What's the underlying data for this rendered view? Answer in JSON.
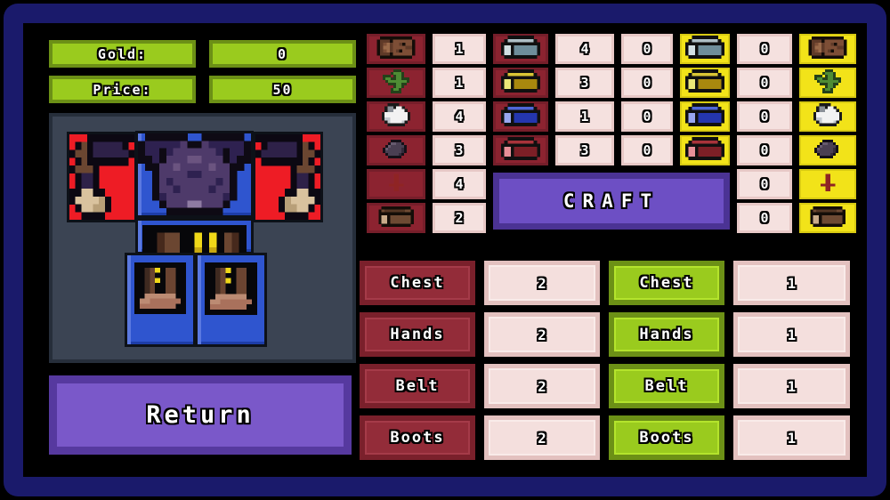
{
  "colors": {
    "frame_navy": "#1a1a6b",
    "accent_green": "#9acb1e",
    "accent_maroon": "#8c2330",
    "accent_pink": "#f5e1df",
    "accent_yellow": "#f2e319",
    "accent_purple": "#7a58c9",
    "slot_red": "#ee1c25",
    "slot_blue": "#2f55cf"
  },
  "stats": {
    "gold_label": "Gold:",
    "gold_value": "0",
    "price_label": "Price:",
    "price_value": "50"
  },
  "actions": {
    "return_label": "Return",
    "craft_label": "CRAFT"
  },
  "character_slots": [
    {
      "slot": "hands-left",
      "icon": "glove-icon"
    },
    {
      "slot": "chest",
      "icon": "chestplate-icon"
    },
    {
      "slot": "hands-right",
      "icon": "glove-icon"
    },
    {
      "slot": "belt",
      "icon": "belt-icon"
    },
    {
      "slot": "boots-left",
      "icon": "boot-icon"
    },
    {
      "slot": "boots-right",
      "icon": "boot-icon"
    }
  ],
  "materials_column": {
    "rows": [
      {
        "icon": "log-icon",
        "count": "1"
      },
      {
        "icon": "cactus-icon",
        "count": "1"
      },
      {
        "icon": "wool-icon",
        "count": "4"
      },
      {
        "icon": "coal-icon",
        "count": "3"
      },
      {
        "icon": "stake-icon",
        "count": "4"
      },
      {
        "icon": "crate-icon",
        "count": "2"
      }
    ]
  },
  "kits_column": {
    "rows": [
      {
        "icon": "silver-kit-icon",
        "count": "4"
      },
      {
        "icon": "gold-kit-icon",
        "count": "3"
      },
      {
        "icon": "blue-kit-icon",
        "count": "1"
      },
      {
        "icon": "red-kit-icon",
        "count": "3"
      }
    ]
  },
  "craft_kit_column": {
    "rows": [
      {
        "count": "0",
        "icon": "silver-kit-icon"
      },
      {
        "count": "0",
        "icon": "gold-kit-icon"
      },
      {
        "count": "0",
        "icon": "blue-kit-icon"
      },
      {
        "count": "0",
        "icon": "red-kit-icon"
      }
    ]
  },
  "craft_material_column": {
    "rows": [
      {
        "count": "0",
        "icon": "log-icon"
      },
      {
        "count": "0",
        "icon": "cactus-icon"
      },
      {
        "count": "0",
        "icon": "wool-icon"
      },
      {
        "count": "0",
        "icon": "coal-icon"
      },
      {
        "count": "0",
        "icon": "stake-icon"
      },
      {
        "count": "0",
        "icon": "crate-icon"
      }
    ]
  },
  "owned_equipment": {
    "rows": [
      {
        "label": "Chest",
        "count": "2"
      },
      {
        "label": "Hands",
        "count": "2"
      },
      {
        "label": "Belt",
        "count": "2"
      },
      {
        "label": "Boots",
        "count": "2"
      }
    ]
  },
  "equipped_equipment": {
    "rows": [
      {
        "label": "Chest",
        "count": "1"
      },
      {
        "label": "Hands",
        "count": "1"
      },
      {
        "label": "Belt",
        "count": "1"
      },
      {
        "label": "Boots",
        "count": "1"
      }
    ]
  }
}
